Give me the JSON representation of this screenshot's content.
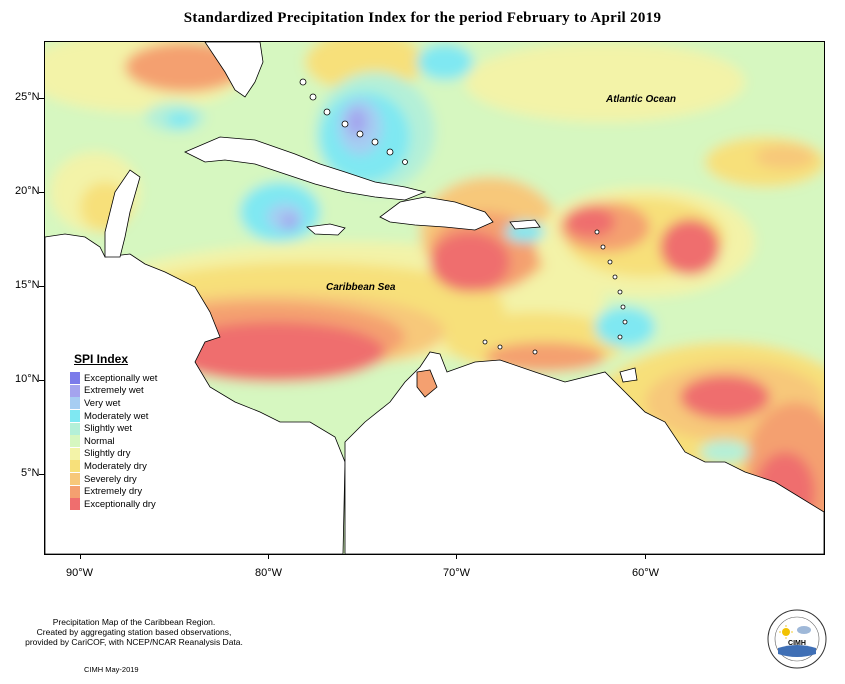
{
  "title": "Standardized Precipitation Index for the period February to April 2019",
  "map": {
    "ocean_labels": {
      "atlantic": "Atlantic Ocean",
      "caribbean": "Caribbean Sea"
    },
    "lat_labels": [
      "25°N",
      "20°N",
      "15°N",
      "10°N",
      "5°N"
    ],
    "lon_labels": [
      "90°W",
      "80°W",
      "70°W",
      "60°W"
    ]
  },
  "legend": {
    "title": "SPI Index",
    "items": [
      {
        "label": "Exceptionally wet",
        "color": "#7b7bea"
      },
      {
        "label": "Extremely wet",
        "color": "#a4a4ee"
      },
      {
        "label": "Very wet",
        "color": "#a6cdf2"
      },
      {
        "label": "Moderately wet",
        "color": "#7fe8f2"
      },
      {
        "label": "Slightly wet",
        "color": "#b4f0d8"
      },
      {
        "label": "Normal",
        "color": "#d6f7c0"
      },
      {
        "label": "Slightly dry",
        "color": "#f3f3a8"
      },
      {
        "label": "Moderately dry",
        "color": "#f7e07a"
      },
      {
        "label": "Severely dry",
        "color": "#f7c87a"
      },
      {
        "label": "Extremely dry",
        "color": "#f4a070"
      },
      {
        "label": "Exceptionally dry",
        "color": "#ef6e6e"
      }
    ]
  },
  "footnote": {
    "line1": "Precipitation Map of the Caribbean Region.",
    "line2": "Created by aggregating station based observations,",
    "line3": "provided by CariCOF, with NCEP/NCAR Reanalysis Data."
  },
  "credit": "CIMH May-2019",
  "logo": {
    "text": "CIMH"
  }
}
